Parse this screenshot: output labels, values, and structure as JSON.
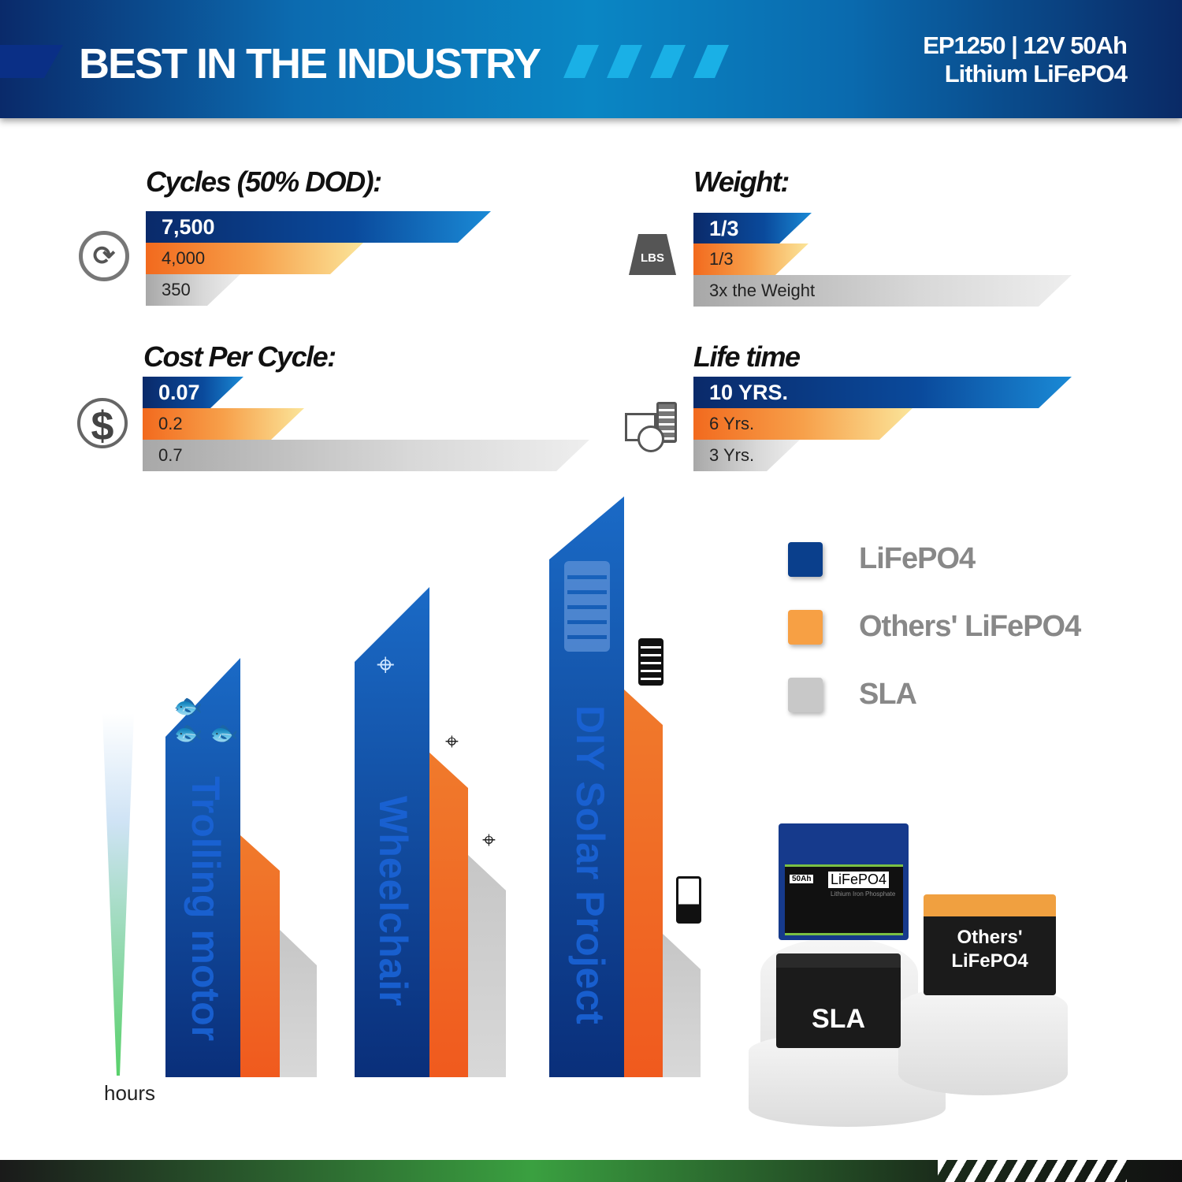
{
  "header": {
    "title": "BEST IN THE INDUSTRY",
    "model_line": "EP1250 | 12V 50Ah",
    "chem_line": "Lithium LiFePO4"
  },
  "metrics": {
    "cycles": {
      "title": "Cycles (50% DOD):",
      "icon": "cycle-icon",
      "values": [
        "7,500",
        "4,000",
        "350"
      ],
      "levels": [
        1,
        0.53,
        0.05
      ]
    },
    "weight": {
      "title": "Weight:",
      "icon": "weight-lbs-icon",
      "icon_text": "LBS",
      "values": [
        "1/3",
        "1/3",
        "3x the Weight"
      ],
      "levels": [
        0.33,
        0.33,
        1
      ]
    },
    "cost": {
      "title": "Cost Per Cycle:",
      "icon": "dollar-icon",
      "values": [
        "0.07",
        "0.2",
        "0.7"
      ],
      "levels": [
        0.1,
        0.29,
        1
      ]
    },
    "life": {
      "title": "Life time",
      "icon": "calendar-clock-icon",
      "values": [
        "10 YRS.",
        "6 Yrs.",
        "3 Yrs."
      ],
      "levels": [
        1,
        0.6,
        0.3
      ]
    }
  },
  "usage": {
    "axis_label": "hours",
    "groups": [
      {
        "label": "Trolling motor",
        "levels": [
          0.72,
          0.41,
          0.25
        ]
      },
      {
        "label": "Wheelchair",
        "levels": [
          0.86,
          0.56,
          0.39
        ]
      },
      {
        "label": "DIY Solar Project",
        "levels": [
          1,
          0.68,
          0.25
        ]
      }
    ]
  },
  "legend": [
    {
      "label": "LiFePO4",
      "color": "#0a3f8c"
    },
    {
      "label": "Others' LiFePO4",
      "color": "#f7a044"
    },
    {
      "label": "SLA",
      "color": "#c8c8c8"
    }
  ],
  "products": {
    "main_capacity": "50Ah",
    "main_name": "LiFePO4",
    "main_sub": "Lithium Iron Phosphate",
    "sla": "SLA",
    "others": "Others' LiFePO4"
  }
}
